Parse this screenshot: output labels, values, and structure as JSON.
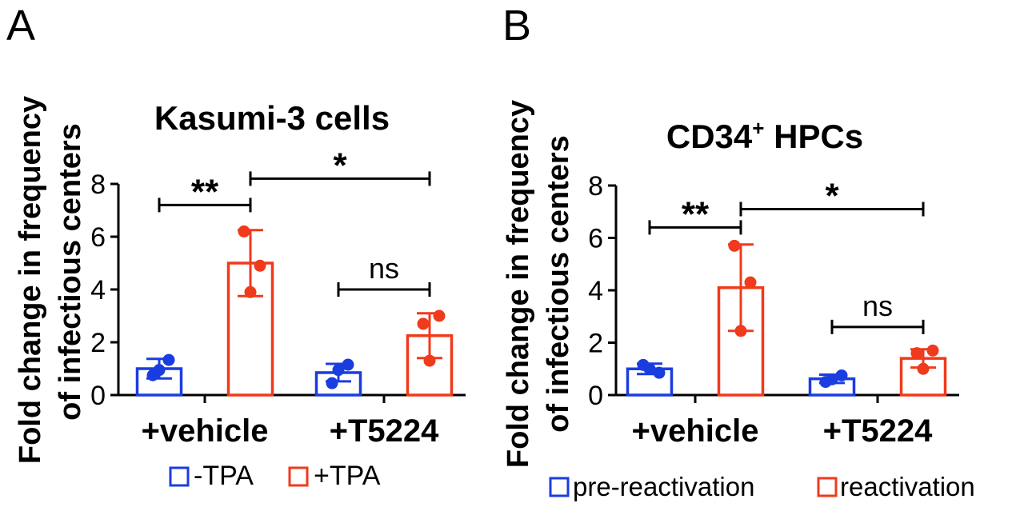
{
  "colors": {
    "blue": "#1a3de0",
    "red": "#f03a1c",
    "black": "#000000"
  },
  "chart_data": [
    {
      "panel_label": "A",
      "type": "bar",
      "title": "Kasumi-3 cells",
      "ylabel_lines": [
        "Fold change in frequency",
        "of infectious centers"
      ],
      "ylim": [
        0,
        8
      ],
      "yticks": [
        0,
        2,
        4,
        6,
        8
      ],
      "categories": [
        "+vehicle",
        "+T5224"
      ],
      "series": [
        {
          "name": "-TPA",
          "color": "blue",
          "values": [
            1.0,
            0.85
          ],
          "errors": [
            0.37,
            0.33
          ],
          "points": [
            [
              0.75,
              1.33,
              0.95
            ],
            [
              0.45,
              1.15,
              0.95
            ]
          ]
        },
        {
          "name": "+TPA",
          "color": "red",
          "values": [
            5.0,
            2.25
          ],
          "errors": [
            1.25,
            0.85
          ],
          "points": [
            [
              6.2,
              4.9,
              3.9
            ],
            [
              2.7,
              3.0,
              1.3
            ]
          ]
        }
      ],
      "comparisons": [
        {
          "from": [
            0,
            0
          ],
          "to": [
            0,
            1
          ],
          "y": 7.2,
          "label": "**"
        },
        {
          "from": [
            0,
            1
          ],
          "to": [
            1,
            1
          ],
          "y": 8.2,
          "label": "*"
        },
        {
          "from": [
            1,
            0
          ],
          "to": [
            1,
            1
          ],
          "y": 4.0,
          "label": "ns"
        }
      ]
    },
    {
      "panel_label": "B",
      "type": "bar",
      "title_main": "CD34",
      "title_sup": "+",
      "title_rest": " HPCs",
      "ylabel_lines": [
        "Fold change in frequency",
        "of infectious centers"
      ],
      "ylim": [
        0,
        8
      ],
      "yticks": [
        0,
        2,
        4,
        6,
        8
      ],
      "categories": [
        "+vehicle",
        "+T5224"
      ],
      "series": [
        {
          "name": "pre-reactivation",
          "color": "blue",
          "values": [
            1.0,
            0.62
          ],
          "errors": [
            0.2,
            0.16
          ],
          "points": [
            [
              1.15,
              0.85,
              1.0
            ],
            [
              0.5,
              0.75,
              0.6
            ]
          ]
        },
        {
          "name": "reactivation",
          "color": "red",
          "values": [
            4.1,
            1.4
          ],
          "errors": [
            1.65,
            0.35
          ],
          "points": [
            [
              5.7,
              4.3,
              2.45
            ],
            [
              1.6,
              1.7,
              1.0
            ]
          ]
        }
      ],
      "comparisons": [
        {
          "from": [
            0,
            0
          ],
          "to": [
            0,
            1
          ],
          "y": 6.4,
          "label": "**"
        },
        {
          "from": [
            0,
            1
          ],
          "to": [
            1,
            1
          ],
          "y": 7.1,
          "label": "*"
        },
        {
          "from": [
            1,
            0
          ],
          "to": [
            1,
            1
          ],
          "y": 2.6,
          "label": "ns"
        }
      ]
    }
  ]
}
